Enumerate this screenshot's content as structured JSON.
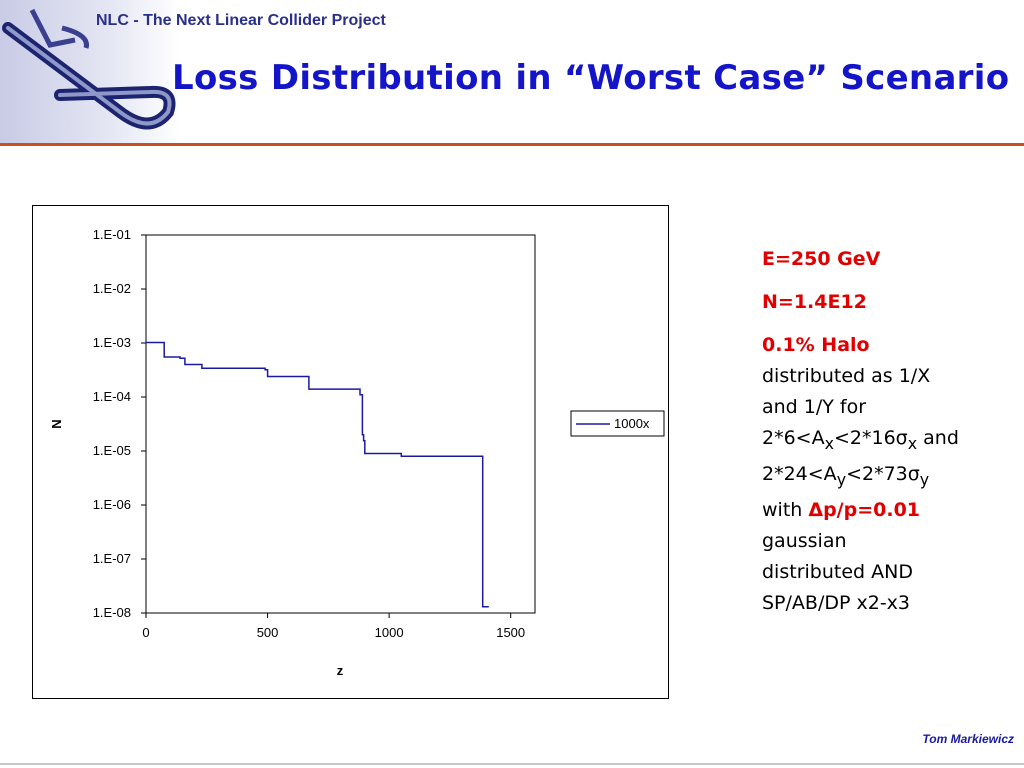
{
  "header": {
    "org_title": "NLC - The Next Linear Collider Project",
    "slide_title": "Loss Distribution in “Worst Case” Scenario",
    "logo_icon": "nlc-logo-icon"
  },
  "info": {
    "energy": "E=250 GeV",
    "particles": "N=1.4E12",
    "halo": "0.1% Halo",
    "line1": "distributed as 1/X",
    "line2": "and 1/Y for",
    "ax_pre": "2*6<A",
    "ax_sub": "x",
    "ax_mid": "<2*16",
    "sigma": "σ",
    "ax_sigsub": "x",
    "and": "and",
    "ay_pre": "2*24<A",
    "ay_sub": "y",
    "ay_mid": "<2*73",
    "ay_sigsub": "y",
    "with": "with",
    "dpp": "Δp/p=0.01",
    "g1": "gaussian",
    "g2": "distributed AND",
    "g3": "SP/AB/DP x2-x3"
  },
  "footer": {
    "author": "Tom Markiewicz"
  },
  "colors": {
    "title": "#1414c8",
    "accent_line": "#c8501e",
    "highlight": "#e00000",
    "series": "#1a1aa0"
  },
  "chart_data": {
    "type": "line",
    "step": true,
    "xlabel": "z",
    "ylabel": "N",
    "xlim": [
      0,
      1600
    ],
    "ylim": [
      1e-08,
      0.1
    ],
    "yscale": "log",
    "xticks": [
      0,
      500,
      1000,
      1500
    ],
    "xtick_labels": [
      "0",
      "500",
      "1000",
      "1500"
    ],
    "yticks": [
      0.1,
      0.01,
      0.001,
      0.0001,
      1e-05,
      1e-06,
      1e-07,
      1e-08
    ],
    "ytick_labels": [
      "1.E-01",
      "1.E-02",
      "1.E-03",
      "1.E-04",
      "1.E-05",
      "1.E-06",
      "1.E-07",
      "1.E-08"
    ],
    "grid": false,
    "legend": "right",
    "series": [
      {
        "name": "1000x",
        "x": [
          0,
          75,
          75,
          140,
          140,
          160,
          160,
          230,
          230,
          490,
          490,
          500,
          500,
          670,
          670,
          880,
          880,
          890,
          890,
          895,
          895,
          900,
          900,
          1050,
          1050,
          1385,
          1385,
          1410
        ],
        "y": [
          0.00102,
          0.00102,
          0.00055,
          0.00055,
          0.00052,
          0.00052,
          0.0004,
          0.0004,
          0.00034,
          0.00034,
          0.00032,
          0.00032,
          0.00024,
          0.00024,
          0.00014,
          0.00014,
          0.00011,
          0.00011,
          2e-05,
          2e-05,
          1.55e-05,
          1.55e-05,
          9e-06,
          9e-06,
          8e-06,
          8e-06,
          1.3e-08,
          1.3e-08
        ]
      }
    ]
  }
}
